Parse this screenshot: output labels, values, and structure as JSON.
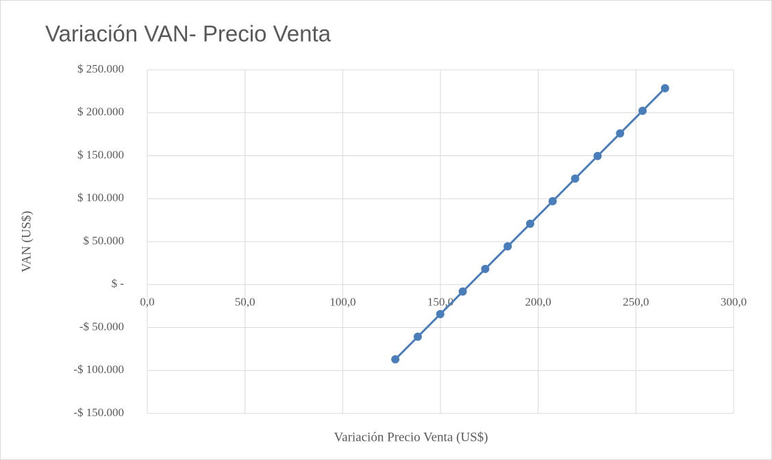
{
  "chart_data": {
    "type": "line",
    "title": "Variación VAN- Precio Venta",
    "x_label": "Variación Precio Venta (US$)",
    "y_label": "VAN (US$)",
    "series": [
      {
        "name": "VAN",
        "color": "#4a7ebb",
        "x": [
          126.9,
          138.4,
          149.9,
          161.4,
          172.9,
          184.4,
          195.9,
          207.4,
          218.9,
          230.4,
          241.9,
          253.4,
          264.9
        ],
        "values": [
          -87000,
          -60700,
          -34400,
          -8100,
          18200,
          44500,
          70800,
          97100,
          123400,
          149700,
          176000,
          202300,
          228600
        ]
      }
    ],
    "xlim": [
      0,
      300
    ],
    "xticks": [
      {
        "value": 0,
        "label": "0,0"
      },
      {
        "value": 50,
        "label": "50,0"
      },
      {
        "value": 100,
        "label": "100,0"
      },
      {
        "value": 150,
        "label": "150,0"
      },
      {
        "value": 200,
        "label": "200,0"
      },
      {
        "value": 250,
        "label": "250,0"
      },
      {
        "value": 300,
        "label": "300,0"
      }
    ],
    "ylim": [
      -150000,
      250000
    ],
    "yticks": [
      {
        "value": -150000,
        "label": "-$ 150.000"
      },
      {
        "value": -100000,
        "label": "-$ 100.000"
      },
      {
        "value": -50000,
        "label": "-$ 50.000"
      },
      {
        "value": 0,
        "label": "$ -"
      },
      {
        "value": 50000,
        "label": "$ 50.000"
      },
      {
        "value": 100000,
        "label": "$ 100.000"
      },
      {
        "value": 150000,
        "label": "$ 150.000"
      },
      {
        "value": 200000,
        "label": "$ 200.000"
      },
      {
        "value": 250000,
        "label": "$ 250.000"
      }
    ],
    "grid": true
  }
}
